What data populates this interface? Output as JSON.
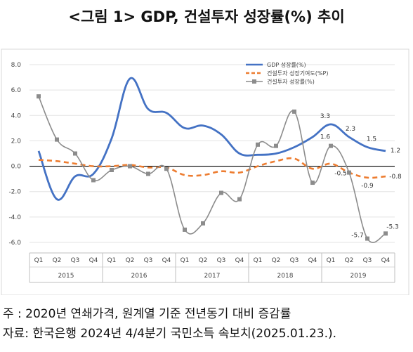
{
  "title": "<그림 1> GDP, 건설투자 성장률(%) 추이",
  "notes": {
    "line1": "주 : 2020년 연쇄가격, 원계열 기준 전년동기 대비 증감률",
    "line2": "자료: 한국은행 2024년 4/4분기 국민소득 속보치(2025.01.23.)."
  },
  "chart_data": {
    "type": "line",
    "title": "",
    "xlabel": "",
    "ylabel": "",
    "ylim": [
      -6.0,
      8.0
    ],
    "yticks": [
      "8.0",
      "6.0",
      "4.0",
      "2.0",
      "0.0",
      "-2.0",
      "-4.0",
      "-6.0"
    ],
    "ytick_values": [
      8,
      6,
      4,
      2,
      0,
      -2,
      -4,
      -6
    ],
    "categories": [
      "Q1",
      "Q2",
      "Q3",
      "Q4",
      "Q1",
      "Q2",
      "Q3",
      "Q4",
      "Q1",
      "Q2",
      "Q3",
      "Q4",
      "Q1",
      "Q2",
      "Q3",
      "Q4",
      "Q1",
      "Q2",
      "Q3",
      "Q4"
    ],
    "years": [
      "2015",
      "2016",
      "2017",
      "2018",
      "2019"
    ],
    "grid": true,
    "legend_position": "top-right",
    "series": [
      {
        "name": "GDP 성장률(%)",
        "style": "solid",
        "color": "#4472c4",
        "values": [
          1.2,
          -2.6,
          -0.8,
          -0.6,
          2.2,
          6.9,
          4.5,
          4.2,
          3.0,
          3.2,
          2.5,
          1.0,
          0.9,
          1.0,
          1.5,
          2.3,
          3.3,
          2.3,
          1.5,
          1.2
        ]
      },
      {
        "name": "건설투자 성장기여도(%P)",
        "style": "dashed",
        "color": "#ed7d31",
        "values": [
          0.5,
          0.4,
          0.2,
          0.0,
          0.0,
          0.1,
          -0.1,
          -0.1,
          -0.7,
          -0.7,
          -0.4,
          -0.5,
          0.0,
          0.4,
          0.6,
          -0.2,
          0.2,
          -0.5,
          -0.9,
          -0.8
        ]
      },
      {
        "name": "건설투자 성장률(%)",
        "style": "solid-square-markers",
        "color": "#8c8c8c",
        "values": [
          5.5,
          2.1,
          1.0,
          -1.1,
          -0.3,
          0.0,
          -0.6,
          -0.2,
          -5.0,
          -4.5,
          -2.1,
          -2.6,
          1.7,
          1.6,
          4.3,
          -1.3,
          1.6,
          -0.5,
          -5.7,
          -5.3
        ]
      }
    ],
    "annotations": [
      {
        "series": 0,
        "index": 16,
        "label": "3.3"
      },
      {
        "series": 0,
        "index": 17,
        "label": "2.3"
      },
      {
        "series": 0,
        "index": 18,
        "label": "1.5"
      },
      {
        "series": 0,
        "index": 19,
        "label": "1.2"
      },
      {
        "series": 1,
        "index": 18,
        "label": "-0.9"
      },
      {
        "series": 1,
        "index": 19,
        "label": "-0.8"
      },
      {
        "series": 2,
        "index": 16,
        "label": "1.6"
      },
      {
        "series": 2,
        "index": 17,
        "label": "-0.5"
      },
      {
        "series": 2,
        "index": 18,
        "label": "-5.7"
      },
      {
        "series": 2,
        "index": 19,
        "label": "-5.3"
      }
    ]
  }
}
